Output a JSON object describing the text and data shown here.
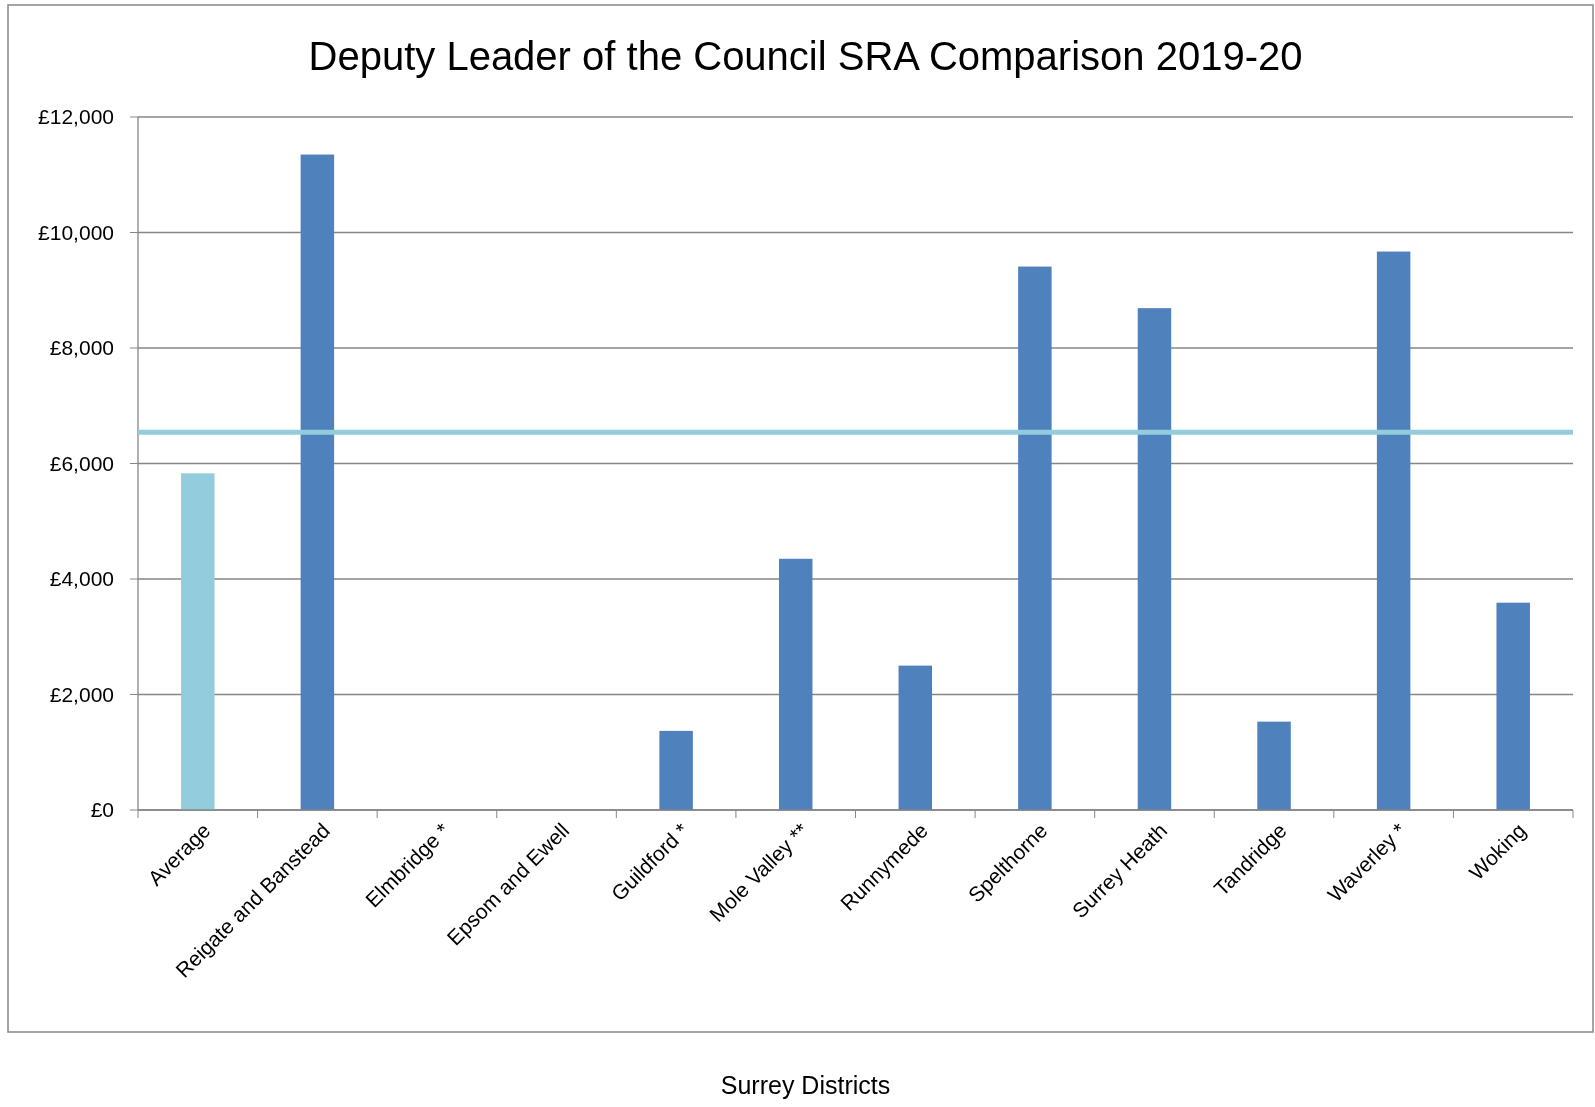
{
  "chart_data": {
    "type": "bar",
    "title": "Deputy Leader of the Council SRA Comparison 2019-20",
    "xlabel": "Surrey Districts",
    "categories": [
      "Average",
      "Reigate and Banstead",
      "Elmbridge *",
      "Epsom and Ewell",
      "Guildford *",
      "Mole Valley **",
      "Runnymede",
      "Spelthorne",
      "Surrey Heath",
      "Tandridge",
      "Waverley *",
      "Woking"
    ],
    "values": [
      5830,
      11350,
      null,
      null,
      1370,
      4350,
      2500,
      9410,
      8690,
      1530,
      9670,
      3590
    ],
    "colors": [
      "#93cddd",
      "#4f81bd",
      null,
      null,
      "#4f81bd",
      "#4f81bd",
      "#4f81bd",
      "#4f81bd",
      "#4f81bd",
      "#4f81bd",
      "#4f81bd",
      "#4f81bd"
    ],
    "ylim": [
      0,
      12000
    ],
    "yticks": [
      {
        "value": 0,
        "label": "£0"
      },
      {
        "value": 2000,
        "label": "£2,000"
      },
      {
        "value": 4000,
        "label": "£4,000"
      },
      {
        "value": 6000,
        "label": "£6,000"
      },
      {
        "value": 8000,
        "label": "£8,000"
      },
      {
        "value": 10000,
        "label": "£10,000"
      },
      {
        "value": 12000,
        "label": "£12,000"
      }
    ],
    "grid": "y",
    "ref_lines": [
      {
        "axis": "y",
        "value": 6540,
        "color": "#93cddd"
      }
    ]
  }
}
